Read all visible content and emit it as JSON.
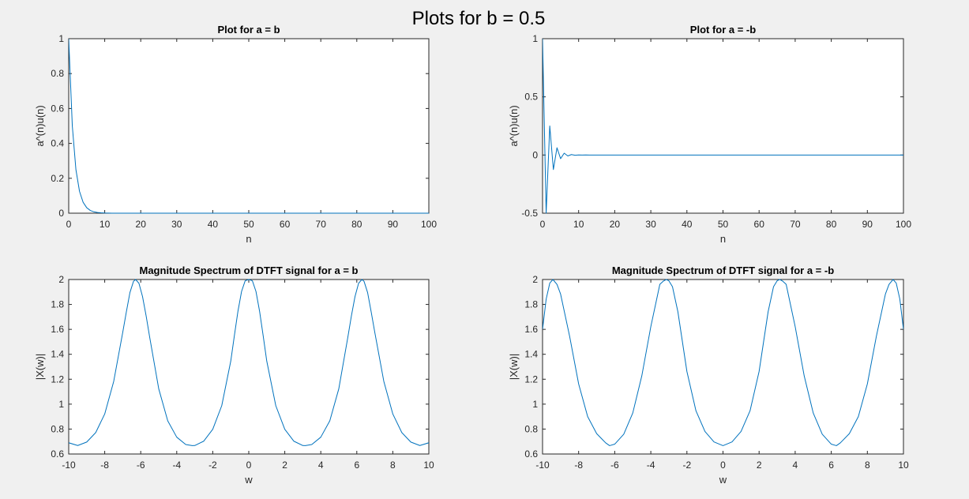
{
  "figure": {
    "suptitle": "Plots for b = 0.5",
    "colors": {
      "line": "#0072bd",
      "axes": "#262626",
      "plot_bg": "#ffffff",
      "figure_bg": "#f0f0f0"
    }
  },
  "chart_data": [
    {
      "type": "line",
      "title": "Plot for a = b",
      "xlabel": "n",
      "ylabel": "a^(n)u(n)",
      "xlim": [
        0,
        100
      ],
      "ylim": [
        0,
        1
      ],
      "xticks": [
        "0",
        "10",
        "20",
        "30",
        "40",
        "50",
        "60",
        "70",
        "80",
        "90",
        "100"
      ],
      "yticks": [
        "0",
        "0.2",
        "0.4",
        "0.6",
        "0.8",
        "1"
      ],
      "series": [
        {
          "x": [
            0,
            1,
            2,
            3,
            4,
            5,
            6,
            7,
            8,
            9,
            10,
            11,
            12,
            13,
            14,
            15,
            16,
            17,
            18,
            19,
            20,
            25,
            30,
            35,
            40,
            45,
            50,
            55,
            60,
            65,
            70,
            75,
            80,
            85,
            90,
            95,
            100
          ],
          "y": [
            1,
            0.5,
            0.25,
            0.125,
            0.0625,
            0.0313,
            0.0156,
            0.0078,
            0.0039,
            0.002,
            0.001,
            0.0005,
            0.0002,
            0.0001,
            0.0001,
            0,
            0,
            0,
            0,
            0,
            0,
            0,
            0,
            0,
            0,
            0,
            0,
            0,
            0,
            0,
            0,
            0,
            0,
            0,
            0,
            0,
            0
          ]
        }
      ]
    },
    {
      "type": "line",
      "title": "Plot for a = -b",
      "xlabel": "n",
      "ylabel": "a^(n)u(n)",
      "xlim": [
        0,
        100
      ],
      "ylim": [
        -0.5,
        1
      ],
      "xticks": [
        "0",
        "10",
        "20",
        "30",
        "40",
        "50",
        "60",
        "70",
        "80",
        "90",
        "100"
      ],
      "yticks": [
        "-0.5",
        "0",
        "0.5",
        "1"
      ],
      "series": [
        {
          "x": [
            0,
            1,
            2,
            3,
            4,
            5,
            6,
            7,
            8,
            9,
            10,
            11,
            12,
            13,
            14,
            15,
            16,
            17,
            18,
            19,
            20,
            25,
            30,
            35,
            40,
            45,
            50,
            55,
            60,
            65,
            70,
            75,
            80,
            85,
            90,
            95,
            100
          ],
          "y": [
            1,
            -0.5,
            0.25,
            -0.125,
            0.0625,
            -0.0313,
            0.0156,
            -0.0078,
            0.0039,
            -0.002,
            0.001,
            -0.0005,
            0.0002,
            -0.0001,
            0.0001,
            0,
            0,
            0,
            0,
            0,
            0,
            0,
            0,
            0,
            0,
            0,
            0,
            0,
            0,
            0,
            0,
            0,
            0,
            0,
            0,
            0,
            0
          ]
        }
      ]
    },
    {
      "type": "line",
      "title": "Magnitude Spectrum of DTFT signal for a = b",
      "xlabel": "w",
      "ylabel": "|X(w)|",
      "xlim": [
        -10,
        10
      ],
      "ylim": [
        0.6,
        2
      ],
      "xticks": [
        "-10",
        "-8",
        "-6",
        "-4",
        "-2",
        "0",
        "2",
        "4",
        "6",
        "8",
        "10"
      ],
      "yticks": [
        "0.6",
        "0.8",
        "1",
        "1.2",
        "1.4",
        "1.6",
        "1.8",
        "2"
      ],
      "series": [
        {
          "x": [
            -10,
            -9.5,
            -9,
            -8.5,
            -8,
            -7.5,
            -7,
            -6.8,
            -6.6,
            -6.4,
            -6.283,
            -6.1,
            -5.9,
            -5.7,
            -5.5,
            -5,
            -4.5,
            -4,
            -3.5,
            -3.142,
            -3,
            -2.5,
            -2,
            -1.5,
            -1,
            -0.8,
            -0.6,
            -0.4,
            -0.2,
            0,
            0.2,
            0.4,
            0.6,
            0.8,
            1,
            1.5,
            2,
            2.5,
            3,
            3.142,
            3.5,
            4,
            4.5,
            5,
            5.5,
            5.7,
            5.9,
            6.1,
            6.283,
            6.4,
            6.6,
            6.8,
            7,
            7.5,
            8,
            8.5,
            9,
            9.5,
            10
          ],
          "y": [
            0.69,
            0.668,
            0.696,
            0.772,
            0.921,
            1.183,
            1.575,
            1.739,
            1.895,
            1.986,
            2,
            1.97,
            1.863,
            1.708,
            1.535,
            1.123,
            0.866,
            0.735,
            0.676,
            0.667,
            0.668,
            0.703,
            0.798,
            0.988,
            1.345,
            1.549,
            1.746,
            1.904,
            1.99,
            2,
            1.99,
            1.904,
            1.746,
            1.549,
            1.345,
            0.988,
            0.798,
            0.703,
            0.668,
            0.667,
            0.676,
            0.735,
            0.866,
            1.123,
            1.535,
            1.708,
            1.863,
            1.97,
            2,
            1.986,
            1.895,
            1.739,
            1.575,
            1.183,
            0.921,
            0.772,
            0.696,
            0.668,
            0.69
          ]
        }
      ]
    },
    {
      "type": "line",
      "title": "Magnitude Spectrum of DTFT signal for a = -b",
      "xlabel": "w",
      "ylabel": "|X(w)|",
      "xlim": [
        -10,
        10
      ],
      "ylim": [
        0.6,
        2
      ],
      "xticks": [
        "-10",
        "-8",
        "-6",
        "-4",
        "-2",
        "0",
        "2",
        "4",
        "6",
        "8",
        "10"
      ],
      "yticks": [
        "0.6",
        "0.8",
        "1",
        "1.2",
        "1.4",
        "1.6",
        "1.8",
        "2"
      ],
      "series": [
        {
          "x": [
            -10,
            -9.8,
            -9.6,
            -9.425,
            -9.2,
            -9,
            -8.5,
            -8,
            -7.5,
            -7,
            -6.5,
            -6.283,
            -6,
            -5.5,
            -5,
            -4.5,
            -4,
            -3.5,
            -3.3,
            -3.142,
            -3,
            -2.8,
            -2.5,
            -2,
            -1.5,
            -1,
            -0.5,
            0,
            0.5,
            1,
            1.5,
            2,
            2.5,
            2.8,
            3,
            3.142,
            3.3,
            3.5,
            4,
            4.5,
            5,
            5.5,
            6,
            6.283,
            6.5,
            7,
            7.5,
            8,
            8.5,
            9,
            9.2,
            9.425,
            9.6,
            9.8,
            10
          ],
          "y": [
            1.6,
            1.842,
            1.971,
            2,
            1.961,
            1.883,
            1.545,
            1.162,
            0.9,
            0.763,
            0.689,
            0.667,
            0.679,
            0.759,
            0.929,
            1.226,
            1.622,
            1.961,
            1.988,
            2,
            1.99,
            1.942,
            1.741,
            1.262,
            0.947,
            0.781,
            0.697,
            0.667,
            0.697,
            0.781,
            0.947,
            1.262,
            1.741,
            1.942,
            1.99,
            2,
            1.988,
            1.961,
            1.622,
            1.226,
            0.929,
            0.759,
            0.679,
            0.667,
            0.689,
            0.763,
            0.9,
            1.162,
            1.545,
            1.883,
            1.961,
            2,
            1.971,
            1.842,
            1.6
          ]
        }
      ]
    }
  ]
}
